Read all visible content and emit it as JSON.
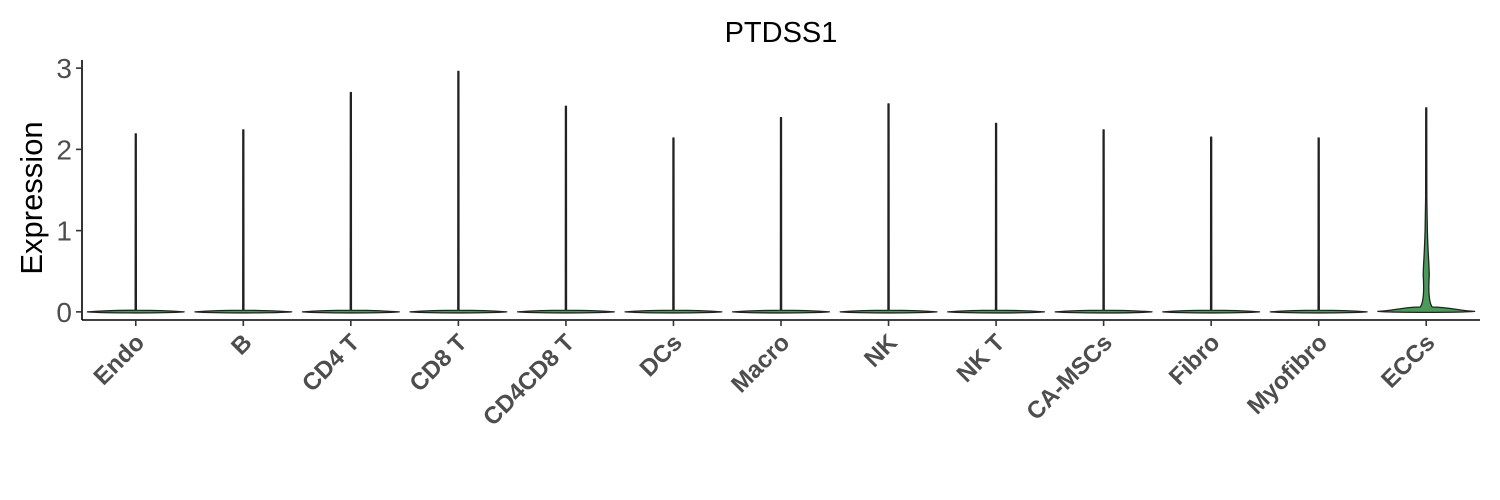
{
  "chart_data": {
    "type": "violin",
    "title": "PTDSS1",
    "xlabel": "",
    "ylabel": "Expression",
    "ylim": [
      -0.1,
      3.1
    ],
    "yticks": [
      0,
      1,
      2,
      3
    ],
    "grid": false,
    "legend": "none",
    "categories": [
      "Endo",
      "B",
      "CD4 T",
      "CD8 T",
      "CD4CD8 T",
      "DCs",
      "Macro",
      "NK",
      "NK T",
      "CA-MSCs",
      "Fibro",
      "Myofibro",
      "ECCs"
    ],
    "max_values": [
      2.19,
      2.24,
      2.7,
      2.96,
      2.53,
      2.14,
      2.39,
      2.56,
      2.32,
      2.24,
      2.15,
      2.14,
      2.51
    ],
    "violin_fill": "#4a9a5a",
    "violin_stroke": "#222222"
  }
}
